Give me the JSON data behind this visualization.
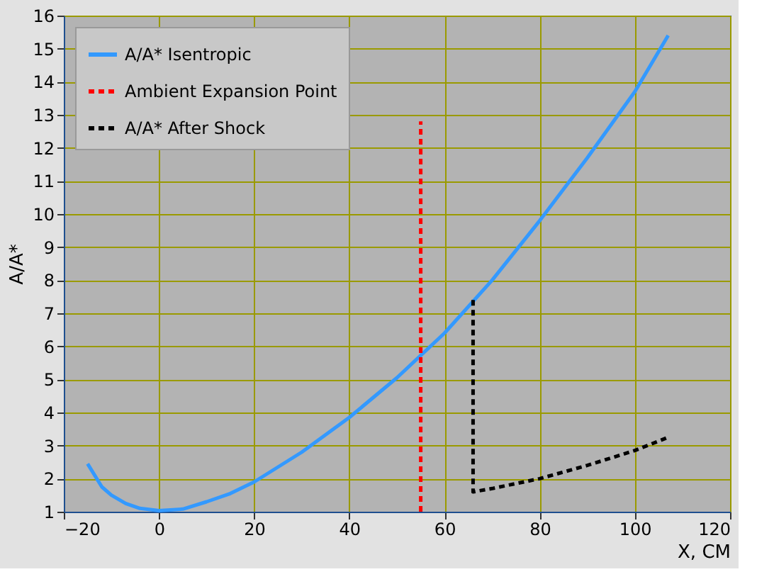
{
  "chart_data": {
    "type": "line",
    "xlabel": "X, CM",
    "ylabel": "A/A*",
    "xlim": [
      -20,
      120
    ],
    "xticks": [
      -20,
      0,
      20,
      40,
      60,
      80,
      100,
      120
    ],
    "ylim": [
      1,
      16
    ],
    "yticks": [
      1,
      2,
      3,
      4,
      5,
      6,
      7,
      8,
      9,
      10,
      11,
      12,
      13,
      14,
      15,
      16
    ],
    "grid": true,
    "legend": "top left",
    "marker": "none",
    "series": [
      {
        "name": "A/A* Isentropic",
        "color": "#3399ff",
        "line_style": "solid",
        "x": [
          -15,
          -12,
          -10,
          -7,
          -4,
          0,
          5,
          10,
          15,
          20,
          30,
          40,
          50,
          60,
          70,
          80,
          90,
          100,
          107
        ],
        "values": [
          2.45,
          1.75,
          1.5,
          1.25,
          1.1,
          1.03,
          1.08,
          1.3,
          1.55,
          1.9,
          2.8,
          3.85,
          5.05,
          6.4,
          8.0,
          9.8,
          11.7,
          13.7,
          15.4
        ]
      },
      {
        "name": "Ambient Expansion Point",
        "color": "#ff0000",
        "line_style": "dashed",
        "x": [
          55,
          55
        ],
        "values": [
          1,
          12.8
        ]
      },
      {
        "name": "A/A* After Shock",
        "color": "#000000",
        "line_style": "dashed",
        "x": [
          66,
          66,
          70,
          80,
          90,
          100,
          107
        ],
        "values": [
          7.4,
          1.6,
          1.7,
          2.0,
          2.4,
          2.85,
          3.25
        ]
      }
    ]
  }
}
